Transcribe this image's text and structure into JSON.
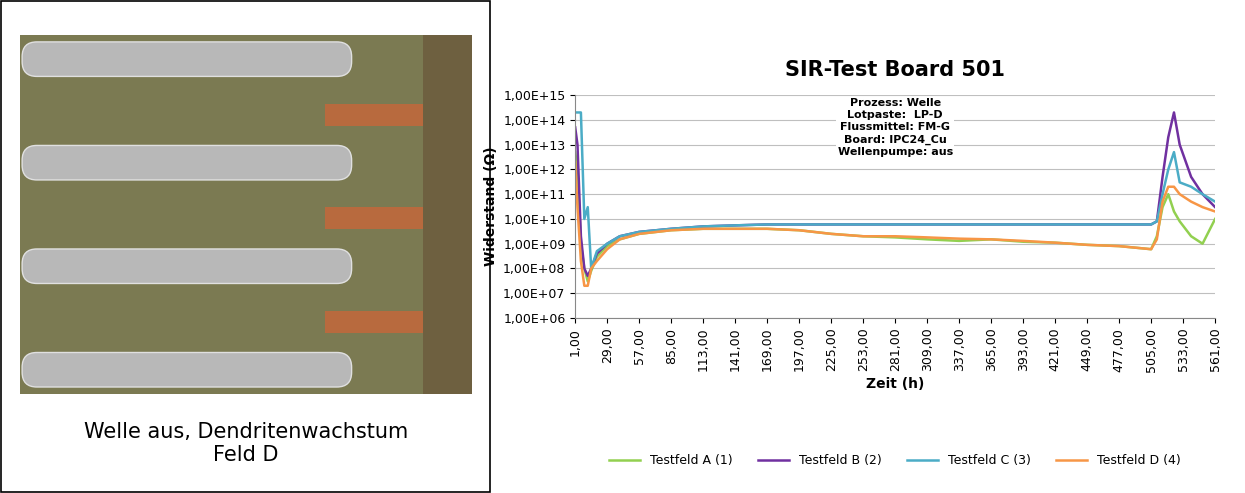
{
  "image": {
    "caption": "Welle aus, Dendritenwachstum\nFeld D"
  },
  "chart_data": {
    "type": "line",
    "title": "SIR-Test Board 501",
    "annotations": [
      "Prozess: Welle",
      "Lotpaste:  LP-D",
      "Flussmittel: FM-G",
      "Board: IPC24_Cu",
      "Wellenpumpe: aus"
    ],
    "x_label": "Zeit (h)",
    "y_label": "Widerstand (Ω)",
    "log": "y",
    "grid": true,
    "legend": "bottom",
    "xlim": [
      1,
      561
    ],
    "xticks": [
      {
        "value": 1,
        "label": "1,00"
      },
      {
        "value": 29,
        "label": "29,00"
      },
      {
        "value": 57,
        "label": "57,00"
      },
      {
        "value": 85,
        "label": "85,00"
      },
      {
        "value": 113,
        "label": "113,00"
      },
      {
        "value": 141,
        "label": "141,00"
      },
      {
        "value": 169,
        "label": "169,00"
      },
      {
        "value": 197,
        "label": "197,00"
      },
      {
        "value": 225,
        "label": "225,00"
      },
      {
        "value": 253,
        "label": "253,00"
      },
      {
        "value": 281,
        "label": "281,00"
      },
      {
        "value": 309,
        "label": "309,00"
      },
      {
        "value": 337,
        "label": "337,00"
      },
      {
        "value": 365,
        "label": "365,00"
      },
      {
        "value": 393,
        "label": "393,00"
      },
      {
        "value": 421,
        "label": "421,00"
      },
      {
        "value": 449,
        "label": "449,00"
      },
      {
        "value": 477,
        "label": "477,00"
      },
      {
        "value": 505,
        "label": "505,00"
      },
      {
        "value": 533,
        "label": "533,00"
      },
      {
        "value": 561,
        "label": "561,00"
      }
    ],
    "ylim": [
      1000000.0,
      1000000000000000.0
    ],
    "yticks": [
      {
        "value": 1000000.0,
        "label": "1,00E+06"
      },
      {
        "value": 10000000.0,
        "label": "1,00E+07"
      },
      {
        "value": 100000000.0,
        "label": "1,00E+08"
      },
      {
        "value": 1000000000.0,
        "label": "1,00E+09"
      },
      {
        "value": 10000000000.0,
        "label": "1,00E+10"
      },
      {
        "value": 100000000000.0,
        "label": "1,00E+11"
      },
      {
        "value": 1000000000000.0,
        "label": "1,00E+12"
      },
      {
        "value": 10000000000000.0,
        "label": "1,00E+13"
      },
      {
        "value": 100000000000000.0,
        "label": "1,00E+14"
      },
      {
        "value": 1000000000000000.0,
        "label": "1,00E+15"
      }
    ],
    "x": [
      1,
      3,
      6,
      9,
      12,
      15,
      20,
      29,
      40,
      57,
      85,
      113,
      141,
      169,
      197,
      225,
      253,
      281,
      309,
      337,
      365,
      393,
      421,
      449,
      477,
      505,
      510,
      515,
      520,
      525,
      530,
      540,
      550,
      561
    ],
    "series": [
      {
        "name": "Testfeld A (1)",
        "color": "#92d050",
        "values": [
          5000000000000.0,
          1000000000000.0,
          1000000000.0,
          100000000.0,
          30000000.0,
          80000000.0,
          300000000.0,
          800000000.0,
          1500000000.0,
          2500000000.0,
          3500000000.0,
          4000000000.0,
          4000000000.0,
          4000000000.0,
          3500000000.0,
          2500000000.0,
          2000000000.0,
          1800000000.0,
          1500000000.0,
          1300000000.0,
          1500000000.0,
          1200000000.0,
          1100000000.0,
          900000000.0,
          800000000.0,
          600000000.0,
          2000000000.0,
          30000000000.0,
          100000000000.0,
          20000000000.0,
          8000000000.0,
          2000000000.0,
          1000000000.0,
          10000000000.0
        ]
      },
      {
        "name": "Testfeld B (2)",
        "color": "#7030a0",
        "values": [
          50000000000000.0,
          10000000000000.0,
          2000000000.0,
          100000000.0,
          50000000.0,
          100000000.0,
          400000000.0,
          1000000000.0,
          2000000000.0,
          3000000000.0,
          4000000000.0,
          5000000000.0,
          5500000000.0,
          6000000000.0,
          6000000000.0,
          6000000000.0,
          6000000000.0,
          6000000000.0,
          6000000000.0,
          6000000000.0,
          6000000000.0,
          6000000000.0,
          6000000000.0,
          6000000000.0,
          6000000000.0,
          6000000000.0,
          8000000000.0,
          500000000000.0,
          20000000000000.0,
          200000000000000.0,
          10000000000000.0,
          500000000000.0,
          100000000000.0,
          30000000000.0
        ]
      },
      {
        "name": "Testfeld C (3)",
        "color": "#4bacc6",
        "values": [
          200000000000000.0,
          200000000000000.0,
          200000000000000.0,
          10000000000.0,
          30000000000.0,
          100000000.0,
          500000000.0,
          1000000000.0,
          2000000000.0,
          3000000000.0,
          4000000000.0,
          5000000000.0,
          5500000000.0,
          6000000000.0,
          6000000000.0,
          6000000000.0,
          6000000000.0,
          6000000000.0,
          6000000000.0,
          6000000000.0,
          6000000000.0,
          6000000000.0,
          6000000000.0,
          6000000000.0,
          6000000000.0,
          6000000000.0,
          8000000000.0,
          100000000000.0,
          1000000000000.0,
          5000000000000.0,
          300000000000.0,
          200000000000.0,
          100000000000.0,
          50000000000.0
        ]
      },
      {
        "name": "Testfeld D (4)",
        "color": "#f79646",
        "values": [
          2000000000000.0,
          30000000000.0,
          200000000.0,
          20000000.0,
          20000000.0,
          100000000.0,
          200000000.0,
          600000000.0,
          1500000000.0,
          2500000000.0,
          3500000000.0,
          4000000000.0,
          4000000000.0,
          4000000000.0,
          3500000000.0,
          2500000000.0,
          2000000000.0,
          2000000000.0,
          1800000000.0,
          1600000000.0,
          1500000000.0,
          1300000000.0,
          1100000000.0,
          900000000.0,
          800000000.0,
          600000000.0,
          1500000000.0,
          50000000000.0,
          200000000000.0,
          200000000000.0,
          100000000000.0,
          50000000000.0,
          30000000000.0,
          20000000000.0
        ]
      }
    ]
  }
}
